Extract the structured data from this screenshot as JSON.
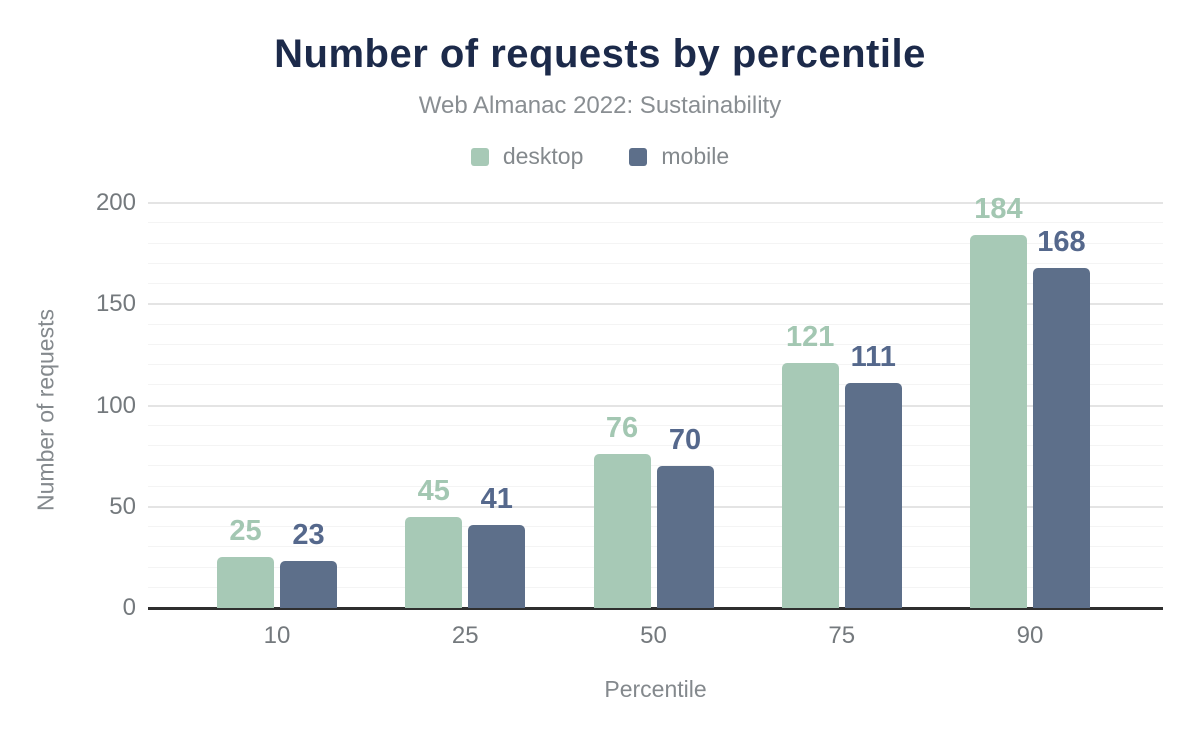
{
  "chart_data": {
    "type": "bar",
    "title": "Number of requests by percentile",
    "subtitle": "Web Almanac 2022: Sustainability",
    "xlabel": "Percentile",
    "ylabel": "Number of requests",
    "categories": [
      "10",
      "25",
      "50",
      "75",
      "90"
    ],
    "series": [
      {
        "name": "desktop",
        "color": "#a7c9b6",
        "label_color": "#a3c7b2",
        "values": [
          25,
          45,
          76,
          121,
          184
        ]
      },
      {
        "name": "mobile",
        "color": "#5d6f8a",
        "label_color": "#55688c",
        "values": [
          23,
          41,
          70,
          111,
          168
        ]
      }
    ],
    "ylim": [
      0,
      200
    ],
    "yticks": [
      0,
      50,
      100,
      150,
      200
    ],
    "minor_gridline_step": 10,
    "grid": "on",
    "legend_position": "top",
    "colors": {
      "title": "#1c2a4a",
      "muted_text": "#84898d",
      "tick_text": "#74797d",
      "axis_line": "#2f2f2f",
      "major_grid": "#e4e4e4",
      "minor_grid": "#f4f4f4",
      "background": "#ffffff"
    }
  }
}
